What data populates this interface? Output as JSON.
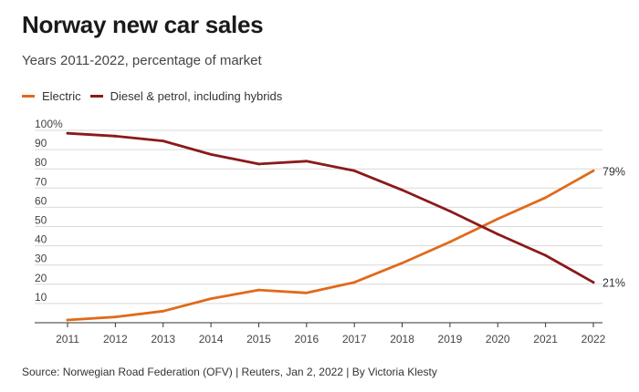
{
  "title": "Norway new car sales",
  "subtitle": "Years 2011-2022, percentage of market",
  "source": "Source: Norwegian Road Federation (OFV) | Reuters, Jan 2, 2022 | By Victoria Klesty",
  "colors": {
    "electric": "#e06a1b",
    "diesel_petrol": "#8b1a1a",
    "grid": "#d9d9d9",
    "axis": "#333333"
  },
  "chart_data": {
    "type": "line",
    "title": "Norway new car sales",
    "subtitle": "Years 2011-2022, percentage of market",
    "x": [
      "2011",
      "2012",
      "2013",
      "2014",
      "2015",
      "2016",
      "2017",
      "2018",
      "2019",
      "2020",
      "2021",
      "2022"
    ],
    "ylim": [
      0,
      100
    ],
    "yticks": [
      "100%",
      "90",
      "80",
      "70",
      "60",
      "50",
      "40",
      "30",
      "20",
      "10"
    ],
    "grid": true,
    "legend_position": "top-left",
    "series": [
      {
        "name": "Electric",
        "color": "#e06a1b",
        "values": [
          1.4,
          3,
          6,
          12.5,
          17,
          15.5,
          21,
          31,
          42,
          54,
          65,
          79
        ],
        "end_label": "79%"
      },
      {
        "name": "Diesel & petrol, including hybrids",
        "color": "#8b1a1a",
        "values": [
          98.5,
          97,
          94.5,
          87.5,
          82.5,
          84,
          79,
          69,
          58,
          46,
          35,
          21
        ],
        "end_label": "21%"
      }
    ]
  }
}
